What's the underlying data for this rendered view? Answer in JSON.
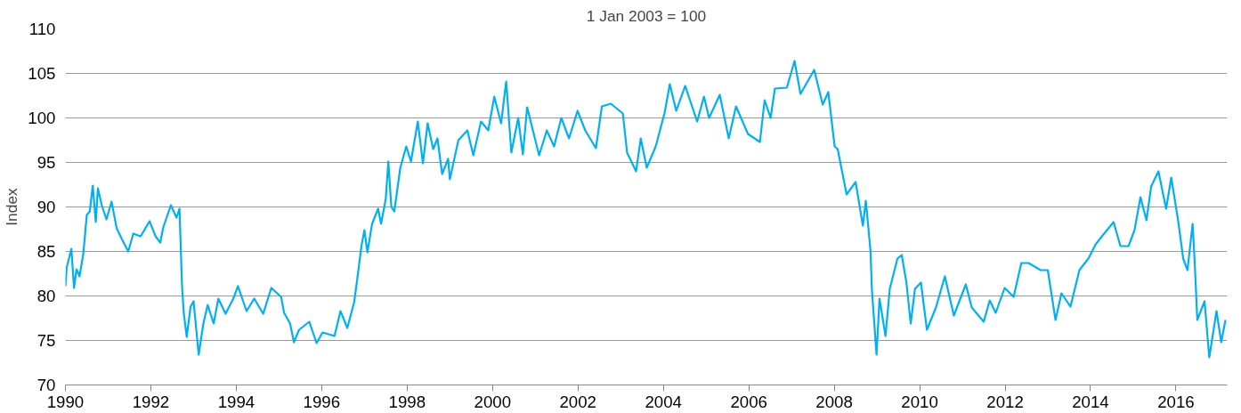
{
  "chart_data": {
    "type": "line",
    "title": "1 Jan 2003 = 100",
    "ylabel": "Index",
    "grid": "y",
    "line_style": "solid",
    "marker": "none",
    "xlim": [
      1990,
      2017.2
    ],
    "xticks": [
      1990,
      1992,
      1994,
      1996,
      1998,
      2000,
      2002,
      2004,
      2006,
      2008,
      2010,
      2012,
      2014,
      2016
    ],
    "ylim": [
      70,
      110
    ],
    "yticks": [
      70,
      75,
      80,
      85,
      90,
      95,
      100,
      105,
      110
    ],
    "series": [
      {
        "color": "#00b0f0",
        "x": [
          1990.0,
          1990.03,
          1990.14,
          1990.2,
          1990.26,
          1990.33,
          1990.42,
          1990.5,
          1990.57,
          1990.64,
          1990.71,
          1990.76,
          1990.85,
          1990.96,
          1991.08,
          1991.2,
          1991.31,
          1991.47,
          1991.59,
          1991.76,
          1991.97,
          1992.11,
          1992.22,
          1992.29,
          1992.47,
          1992.6,
          1992.67,
          1992.73,
          1992.77,
          1992.84,
          1992.93,
          1993.0,
          1993.12,
          1993.23,
          1993.33,
          1993.47,
          1993.58,
          1993.75,
          1993.93,
          1994.04,
          1994.24,
          1994.42,
          1994.63,
          1994.82,
          1995.05,
          1995.12,
          1995.26,
          1995.35,
          1995.47,
          1995.71,
          1995.88,
          1996.02,
          1996.3,
          1996.44,
          1996.6,
          1996.76,
          1996.83,
          1996.93,
          1997.0,
          1997.07,
          1997.18,
          1997.32,
          1997.39,
          1997.5,
          1997.56,
          1997.63,
          1997.7,
          1997.84,
          1997.98,
          1998.09,
          1998.25,
          1998.37,
          1998.48,
          1998.61,
          1998.71,
          1998.82,
          1998.96,
          1999.0,
          1999.2,
          1999.41,
          1999.55,
          1999.73,
          1999.9,
          2000.04,
          2000.2,
          2000.32,
          2000.44,
          2000.6,
          2000.71,
          2000.81,
          2001.09,
          2001.27,
          2001.44,
          2001.61,
          2001.79,
          2001.99,
          2002.17,
          2002.42,
          2002.56,
          2002.77,
          2003.05,
          2003.15,
          2003.36,
          2003.47,
          2003.61,
          2003.82,
          2004.03,
          2004.15,
          2004.3,
          2004.51,
          2004.79,
          2004.95,
          2005.07,
          2005.32,
          2005.53,
          2005.7,
          2005.98,
          2006.26,
          2006.37,
          2006.51,
          2006.61,
          2006.89,
          2007.07,
          2007.21,
          2007.53,
          2007.73,
          2007.86,
          2008.01,
          2008.08,
          2008.29,
          2008.5,
          2008.67,
          2008.74,
          2008.85,
          2008.88,
          2008.99,
          2009.06,
          2009.2,
          2009.3,
          2009.48,
          2009.58,
          2009.69,
          2009.79,
          2009.89,
          2010.03,
          2010.17,
          2010.38,
          2010.59,
          2010.8,
          2011.08,
          2011.22,
          2011.5,
          2011.64,
          2011.78,
          2011.99,
          2012.2,
          2012.38,
          2012.55,
          2012.83,
          2013.0,
          2013.18,
          2013.32,
          2013.53,
          2013.74,
          2013.95,
          2014.12,
          2014.3,
          2014.54,
          2014.7,
          2014.89,
          2015.03,
          2015.17,
          2015.31,
          2015.42,
          2015.59,
          2015.77,
          2015.89,
          2016.05,
          2016.17,
          2016.27,
          2016.39,
          2016.44,
          2016.5,
          2016.67,
          2016.78,
          2016.95,
          2017.06,
          2017.16
        ],
        "values": [
          81.1,
          83.2,
          85.3,
          80.9,
          83,
          82.2,
          84.8,
          89.1,
          89.5,
          92.4,
          88.3,
          92.1,
          90.2,
          88.6,
          90.6,
          87.6,
          86.5,
          85,
          87,
          86.7,
          88.4,
          86.7,
          86,
          87.7,
          90.2,
          88.8,
          89.8,
          81.1,
          78.1,
          75.4,
          78.8,
          79.4,
          73.4,
          76.9,
          79,
          76.9,
          79.7,
          78,
          79.7,
          81.1,
          78.3,
          79.7,
          78,
          80.9,
          79.9,
          78.1,
          76.9,
          74.8,
          76.2,
          77.1,
          74.7,
          75.9,
          75.5,
          78.3,
          76.4,
          79.3,
          81.8,
          85.6,
          87.4,
          84.9,
          88.1,
          89.8,
          88.1,
          90.9,
          95.1,
          90,
          89.5,
          94.4,
          96.8,
          95.1,
          99.6,
          94.9,
          99.4,
          96.5,
          97.7,
          93.7,
          95.4,
          93.1,
          97.5,
          98.6,
          95.8,
          99.6,
          98.6,
          102.4,
          99.4,
          104.1,
          96.1,
          100,
          95.9,
          101.2,
          95.8,
          98.6,
          96.8,
          100,
          97.7,
          100.8,
          98.6,
          96.6,
          101.3,
          101.6,
          100.5,
          96.1,
          94,
          97.7,
          94.4,
          96.8,
          100.6,
          103.8,
          100.8,
          103.6,
          99.6,
          102.4,
          100,
          102.6,
          97.7,
          101.3,
          98.2,
          97.3,
          102,
          100,
          103.3,
          103.4,
          106.4,
          102.7,
          105.4,
          101.5,
          102.9,
          96.8,
          96.5,
          91.4,
          92.8,
          87.9,
          90.7,
          85,
          80.8,
          73.4,
          79.7,
          75.5,
          80.8,
          84.2,
          84.6,
          81.5,
          76.9,
          80.8,
          81.5,
          76.2,
          78.7,
          82.2,
          77.8,
          81.3,
          78.7,
          77.1,
          79.5,
          78.1,
          80.9,
          79.9,
          83.7,
          83.7,
          82.9,
          82.9,
          77.3,
          80.3,
          78.8,
          82.9,
          84.2,
          85.8,
          86.9,
          88.3,
          85.6,
          85.6,
          87.4,
          91.1,
          88.5,
          92.3,
          94,
          89.8,
          93.3,
          88.5,
          84.2,
          82.9,
          88.1,
          83.7,
          77.3,
          79.4,
          73.1,
          78.3,
          74.8,
          77.3
        ]
      }
    ]
  }
}
